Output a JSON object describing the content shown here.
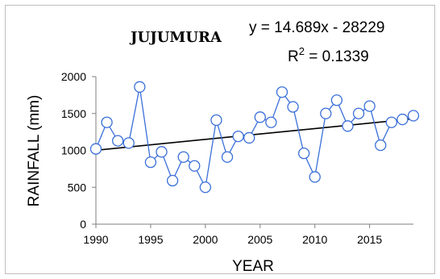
{
  "chart_data": {
    "type": "line",
    "title": "JUJUMURA",
    "equation": "y = 14.689x - 28229",
    "r_squared_label": "R",
    "r_squared_sup": "2",
    "r_squared_value": " = 0.1339",
    "xlabel": "YEAR",
    "ylabel": "RAINFALL  (mm)",
    "xlim": [
      1990,
      2019
    ],
    "ylim": [
      0,
      2000
    ],
    "xticks": [
      1990,
      1995,
      2000,
      2005,
      2010,
      2015
    ],
    "yticks": [
      0,
      500,
      1000,
      1500,
      2000
    ],
    "grid": false,
    "series": [
      {
        "color": "#3a6fd8",
        "marker": "open-circle",
        "x": [
          1990,
          1991,
          1992,
          1993,
          1994,
          1995,
          1996,
          1997,
          1998,
          1999,
          2000,
          2001,
          2002,
          2003,
          2004,
          2005,
          2006,
          2007,
          2008,
          2009,
          2010,
          2011,
          2012,
          2013,
          2014,
          2015,
          2016,
          2017,
          2018,
          2019
        ],
        "y": [
          1020,
          1380,
          1130,
          1100,
          1860,
          840,
          980,
          590,
          910,
          790,
          500,
          1410,
          910,
          1190,
          1170,
          1450,
          1380,
          1790,
          1590,
          960,
          640,
          1500,
          1680,
          1330,
          1500,
          1600,
          1070,
          1380,
          1420,
          1470
        ]
      }
    ],
    "trendline": {
      "slope": 14.689,
      "intercept": -28229,
      "color": "#000000"
    }
  }
}
